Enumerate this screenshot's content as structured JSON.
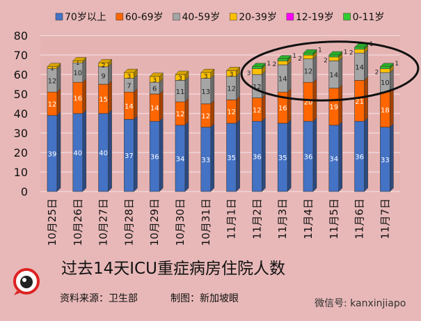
{
  "chart_data": {
    "type": "bar",
    "stacked": true,
    "style": "3d-column",
    "title": "过去14天ICU重症病房住院人数",
    "categories": [
      "10月25日",
      "10月26日",
      "10月27日",
      "10月28日",
      "10月29日",
      "10月30日",
      "10月31日",
      "11月1日",
      "11月2日",
      "11月3日",
      "11月4日",
      "11月5日",
      "11月6日",
      "11月7日"
    ],
    "series": [
      {
        "name": "70岁以上",
        "color": "#4472c4",
        "values": [
          39,
          40,
          40,
          37,
          36,
          34,
          33,
          35,
          36,
          35,
          36,
          34,
          36,
          33
        ]
      },
      {
        "name": "60-69岁",
        "color": "#ff6600",
        "values": [
          12,
          16,
          15,
          14,
          14,
          12,
          12,
          12,
          12,
          16,
          20,
          19,
          21,
          18
        ]
      },
      {
        "name": "40-59岁",
        "color": "#a5a5a5",
        "values": [
          12,
          10,
          9,
          7,
          6,
          11,
          13,
          12,
          12,
          14,
          12,
          14,
          14,
          10
        ]
      },
      {
        "name": "20-39岁",
        "color": "#ffc000",
        "values": [
          1,
          1,
          2,
          3,
          3,
          3,
          3,
          3,
          3,
          2,
          2,
          2,
          2,
          2
        ]
      },
      {
        "name": "12-19岁",
        "color": "#ff00ff",
        "values": [
          0,
          0,
          0,
          0,
          0,
          0,
          0,
          0,
          0,
          0,
          0,
          0,
          0,
          0
        ]
      },
      {
        "name": "0-11岁",
        "color": "#33cc33",
        "values": [
          0,
          0,
          0,
          0,
          0,
          0,
          0,
          0,
          1,
          1,
          1,
          1,
          1,
          1
        ]
      }
    ],
    "ylim": [
      0,
      80
    ],
    "yticks": [
      0,
      10,
      20,
      30,
      40,
      50,
      60,
      70,
      80
    ],
    "grid": true,
    "legend": "top",
    "annotation": "ellipse highlighting 11月2日–11月7日"
  },
  "footer": {
    "source": "资料来源：卫生部",
    "maker": "制图：新加坡眼",
    "wechat": "微信号: kanxinjiapo",
    "logo_text": "新加坡眼"
  }
}
